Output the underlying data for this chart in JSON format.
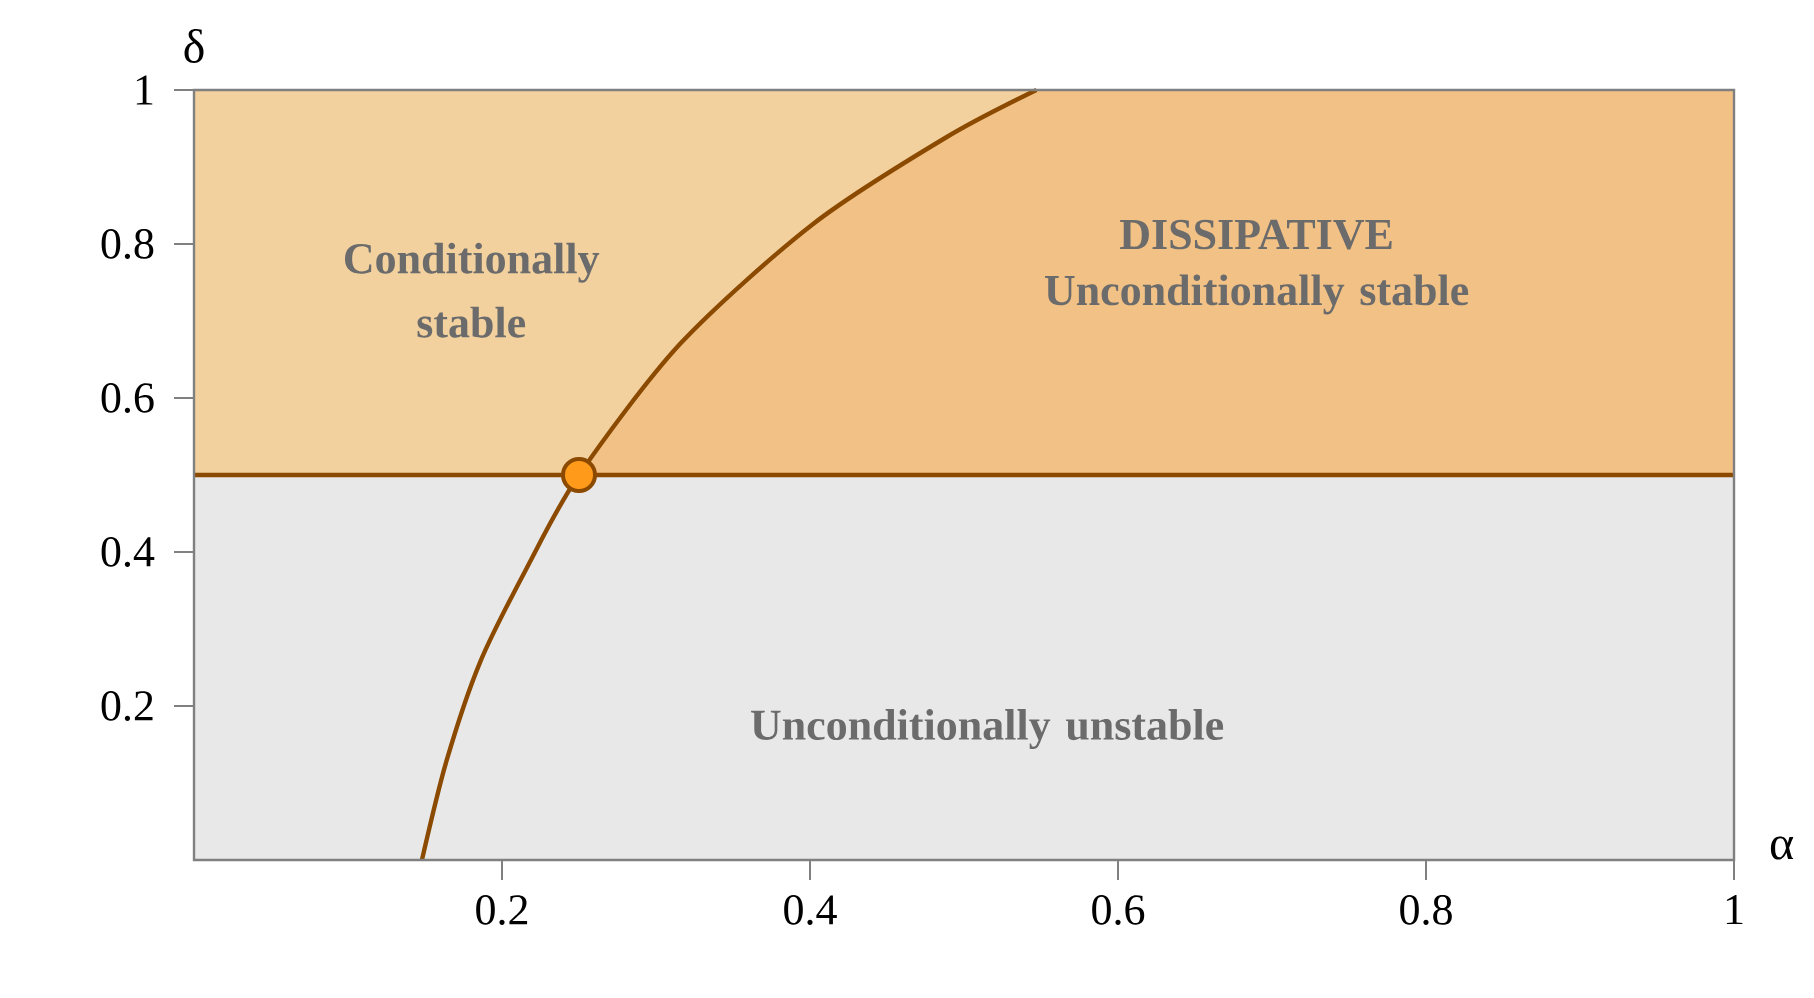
{
  "chart_data": {
    "type": "line",
    "xlabel": "α",
    "ylabel": "δ",
    "xlim": [
      0,
      1
    ],
    "ylim": [
      0,
      1
    ],
    "xticks": [
      0.2,
      0.4,
      0.6,
      0.8,
      1
    ],
    "yticks": [
      0.2,
      0.4,
      0.6,
      0.8,
      1
    ],
    "bands": [
      {
        "axis": "y",
        "from": 0.5,
        "to": 1,
        "label": "Conditionally stable",
        "color": "#f2d19f"
      },
      {
        "axis": "y",
        "from": 0,
        "to": 0.5,
        "label": "Unconditionally unstable",
        "color": "#e8e8e8"
      }
    ],
    "ref_lines": [
      {
        "axis": "y",
        "value": 0.5,
        "color": "#8b4a00"
      }
    ],
    "series": [
      {
        "type": "area",
        "name": "DISSIPATIVE Unconditionally stable",
        "color": "#f2c185",
        "x": [
          0.25,
          0.316,
          0.402,
          0.488,
          0.547,
          1
        ],
        "values": [
          0.5,
          0.671,
          0.826,
          0.938,
          1,
          1
        ]
      },
      {
        "color": "#8b4a00",
        "x": [
          0.148,
          0.164,
          0.186,
          0.216,
          0.25,
          0.316,
          0.402,
          0.488,
          0.547
        ],
        "values": [
          0,
          0.129,
          0.258,
          0.379,
          0.5,
          0.671,
          0.826,
          0.938,
          1
        ]
      },
      {
        "type": "scatter",
        "color": "#ff9a1a",
        "x": [
          0.25
        ],
        "values": [
          0.5
        ]
      }
    ]
  }
}
